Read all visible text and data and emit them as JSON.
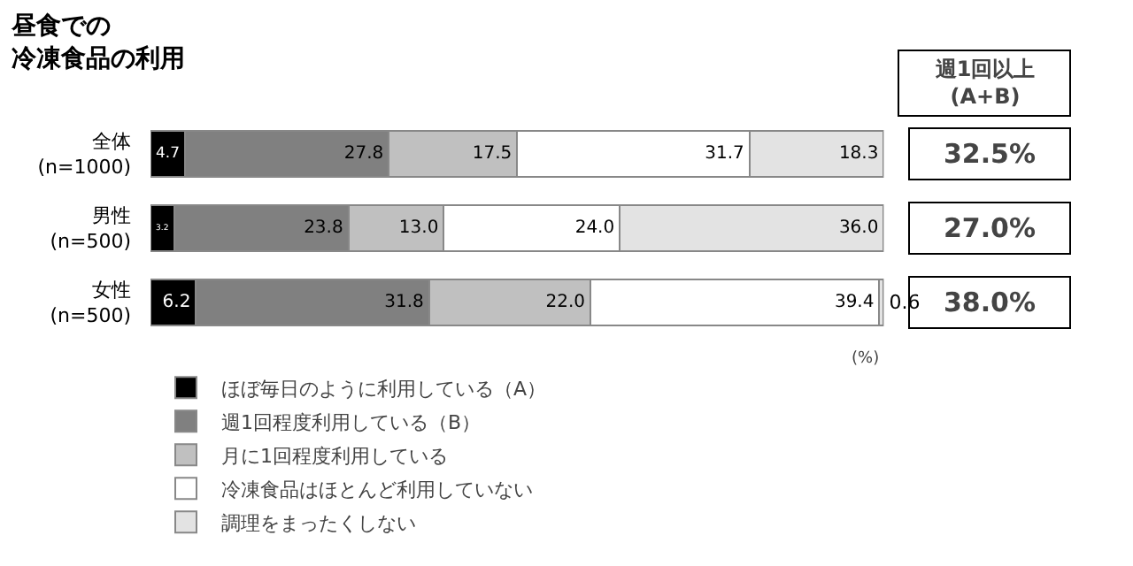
{
  "chart_data": {
    "type": "bar",
    "orientation": "horizontal",
    "stacked": true,
    "title": "昼食での冷凍食品の利用",
    "categories": [
      "全体\n(n=1000)",
      "男性\n(n=500)",
      "女性\n(n=500)"
    ],
    "series": [
      {
        "name": "ほぼ毎日のように利用している（A）",
        "color": "#000000",
        "values": [
          4.7,
          3.2,
          6.2
        ],
        "value_labels": [
          "4.7",
          "3.2",
          "6.2"
        ]
      },
      {
        "name": "週1回程度利用している（B）",
        "color": "#808080",
        "values": [
          27.8,
          23.8,
          31.8
        ],
        "value_labels": [
          "27.8",
          "23.8",
          "31.8"
        ]
      },
      {
        "name": "月に1回程度利用している",
        "color": "#c0c0c0",
        "values": [
          17.5,
          13,
          22
        ],
        "value_labels": [
          "17.5",
          "13.0",
          "22.0"
        ]
      },
      {
        "name": "冷凍食品はほとんど利用していない",
        "color": "#ffffff",
        "values": [
          31.7,
          24,
          39.4
        ],
        "value_labels": [
          "31.7",
          "24.0",
          "39.4"
        ]
      },
      {
        "name": "調理をまったくしない",
        "color": "#e3e3e3",
        "values": [
          18.3,
          36,
          0.6
        ],
        "value_labels": [
          "18.3",
          "36.0",
          "0.6"
        ]
      }
    ],
    "xlim": [
      0,
      100
    ],
    "tick_labels": "y",
    "legend": "bottom",
    "annotations": [
      "週1回以上\n(A+B)",
      "32.5%",
      "27.0%",
      "38.0%",
      "(%)"
    ]
  }
}
